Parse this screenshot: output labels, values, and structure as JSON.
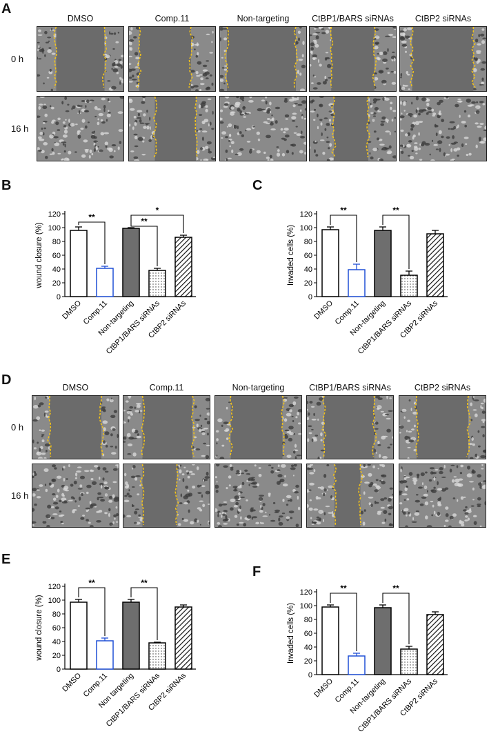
{
  "panels": {
    "A": "A",
    "B": "B",
    "C": "C",
    "D": "D",
    "E": "E",
    "F": "F"
  },
  "micrograph_columns": [
    "DMSO",
    "Comp.11",
    "Non-targeting",
    "CtBP1/BARS siRNAs",
    "CtBP2 siRNAs"
  ],
  "micrograph_rows": [
    "0 h",
    "16 h"
  ],
  "colors": {
    "outline": "#000000",
    "blue": "#1f4fd6",
    "gray_bar": "#6e6e6e",
    "wound_line": "#f2c21a"
  },
  "chart_data": [
    {
      "id": "B",
      "type": "bar",
      "ylabel": "wound closure (%)",
      "ylim": [
        0,
        120
      ],
      "yticks": [
        0,
        20,
        40,
        60,
        80,
        100,
        120
      ],
      "categories": [
        "DMSO",
        "Comp.11",
        "Non-targeting",
        "CtBP1/BARS siRNAs",
        "CtBP2 siRNAs"
      ],
      "values": [
        96,
        41,
        99,
        38,
        86
      ],
      "errors": [
        5,
        3,
        1,
        3,
        3
      ],
      "fills": [
        "white",
        "white-blue",
        "gray",
        "dotted",
        "hatched"
      ],
      "significance": [
        {
          "from": 0,
          "to": 1,
          "label": "**"
        },
        {
          "from": 2,
          "to": 3,
          "label": "**"
        },
        {
          "from": 2,
          "to": 4,
          "label": "*"
        }
      ]
    },
    {
      "id": "C",
      "type": "bar",
      "ylabel": "Invaded cells (%)",
      "ylim": [
        0,
        120
      ],
      "yticks": [
        0,
        20,
        40,
        60,
        80,
        100,
        120
      ],
      "categories": [
        "DMSO",
        "Comp.11",
        "Non-targeting",
        "CtBP1/BARS siRNAs",
        "CtBP2 siRNAs"
      ],
      "values": [
        97,
        39,
        96,
        31,
        91
      ],
      "errors": [
        4,
        8,
        5,
        6,
        5
      ],
      "fills": [
        "white",
        "white-blue",
        "gray",
        "dotted",
        "hatched"
      ],
      "significance": [
        {
          "from": 0,
          "to": 1,
          "label": "**"
        },
        {
          "from": 2,
          "to": 3,
          "label": "**"
        }
      ]
    },
    {
      "id": "E",
      "type": "bar",
      "ylabel": "wound closure (%)",
      "ylim": [
        0,
        120
      ],
      "yticks": [
        0,
        20,
        40,
        60,
        80,
        100,
        120
      ],
      "categories": [
        "DMSO",
        "Comp.11",
        "Non targeting",
        "CtBP1/BARS siRNAs",
        "CtBP2 siRNAs"
      ],
      "values": [
        97,
        41,
        97,
        38,
        90
      ],
      "errors": [
        4,
        4,
        4,
        1,
        3
      ],
      "fills": [
        "white",
        "white-blue",
        "gray",
        "dotted",
        "hatched"
      ],
      "significance": [
        {
          "from": 0,
          "to": 1,
          "label": "**"
        },
        {
          "from": 2,
          "to": 3,
          "label": "**"
        }
      ]
    },
    {
      "id": "F",
      "type": "bar",
      "ylabel": "Invaded cells (%)",
      "ylim": [
        0,
        120
      ],
      "yticks": [
        0,
        20,
        40,
        60,
        80,
        100,
        120
      ],
      "categories": [
        "DMSO",
        "Comp.11",
        "Non-targeting",
        "CtBP1/BARS siRNAs",
        "CtBP2 siRNAs"
      ],
      "values": [
        98,
        27,
        97,
        37,
        87
      ],
      "errors": [
        3,
        4,
        4,
        4,
        4
      ],
      "fills": [
        "white",
        "white-blue",
        "gray",
        "dotted",
        "hatched"
      ],
      "significance": [
        {
          "from": 0,
          "to": 1,
          "label": "**"
        },
        {
          "from": 2,
          "to": 3,
          "label": "**"
        }
      ]
    }
  ]
}
